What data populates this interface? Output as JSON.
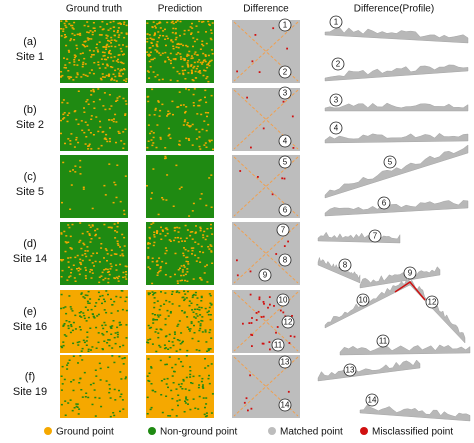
{
  "headers": [
    "Ground truth",
    "Prediction",
    "Difference",
    "Difference(Profile)"
  ],
  "rows": [
    {
      "tag": "(a)",
      "site": "Site 1",
      "difference_markers": [
        "1",
        "2"
      ],
      "profile_markers": [
        "1",
        "2"
      ]
    },
    {
      "tag": "(b)",
      "site": "Site 2",
      "difference_markers": [
        "3",
        "4"
      ],
      "profile_markers": [
        "3",
        "4"
      ]
    },
    {
      "tag": "(c)",
      "site": "Site 5",
      "difference_markers": [
        "5",
        "6"
      ],
      "profile_markers": [
        "5",
        "6"
      ]
    },
    {
      "tag": "(d)",
      "site": "Site 14",
      "difference_markers": [
        "7",
        "8",
        "9"
      ],
      "profile_markers": [
        "7",
        "8",
        "9"
      ]
    },
    {
      "tag": "(e)",
      "site": "Site 16",
      "difference_markers": [
        "10",
        "12",
        "11"
      ],
      "profile_markers": [
        "10",
        "12",
        "11"
      ]
    },
    {
      "tag": "(f)",
      "site": "Site 19",
      "difference_markers": [
        "13",
        "14"
      ],
      "profile_markers": [
        "13",
        "14"
      ]
    }
  ],
  "legend": [
    {
      "label": "Ground point",
      "color": "#f5a800"
    },
    {
      "label": "Non-ground point",
      "color": "#1f8a12"
    },
    {
      "label": "Matched point",
      "color": "#bdbdbd"
    },
    {
      "label": "Misclassified point",
      "color": "#d01010"
    }
  ]
}
